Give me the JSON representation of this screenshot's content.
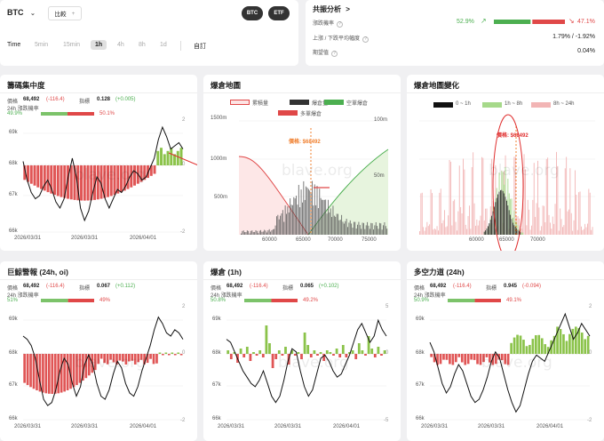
{
  "header": {
    "symbol": "BTC",
    "compare_label": "比較",
    "pills": [
      "BTC",
      "ETF"
    ],
    "time_label": "Time",
    "timeframes": [
      "5min",
      "15min",
      "1h",
      "4h",
      "8h",
      "1d"
    ],
    "selected_timeframe": "1h",
    "custom_label": "自訂"
  },
  "summary": {
    "title": "共振分析",
    "rows": [
      {
        "label": "漲跌機率",
        "value_up": "52.9%",
        "value_down": "47.1%",
        "up_fraction": 0.529
      },
      {
        "label": "上漲 / 下跌平均幅度",
        "value": "1.79% / -1.92%"
      },
      {
        "label": "期望值",
        "value": "0.04%"
      }
    ]
  },
  "panels": [
    {
      "title": "籌碼集中度",
      "price_label": "價格",
      "price": "68,492",
      "price_change": "(-116.4)",
      "indicator_label": "指標",
      "indicator": "0.128",
      "indicator_change": "(+0.005)",
      "prob_label": "24h 漲跌機率",
      "prob_up": "49.9%",
      "prob_down": "50.1%",
      "up_fraction": 0.499,
      "y_ticks": [
        "69k",
        "68k",
        "67k",
        "66k"
      ],
      "right_top": "2",
      "right_zero": "0",
      "right_bottom": "-2",
      "x_ticks": [
        "2026/03/31",
        "2026/03/31",
        "2026/04/01"
      ]
    },
    {
      "title": "爆倉地圖",
      "legend": [
        "累積量",
        "爆倉量",
        "空單爆倉",
        "多單爆倉"
      ],
      "price_tag": "價格: $68492",
      "left_ticks": [
        "1500m",
        "1000m",
        "500m"
      ],
      "right_ticks": [
        "100m",
        "50m"
      ],
      "x_ticks": [
        "60000",
        "65000",
        "70000",
        "75000"
      ]
    },
    {
      "title": "爆倉地圖變化",
      "legend": [
        "0 ~ 1h",
        "1h ~ 8h",
        "8h ~ 24h"
      ],
      "price_tag": "價格: $68492",
      "x_ticks": [
        "60000",
        "65000",
        "70000"
      ]
    },
    {
      "title": "巨鯨警報 (24h, oi)",
      "price_label": "價格",
      "price": "68,492",
      "price_change": "(-116.4)",
      "indicator_label": "指標",
      "indicator": "0.067",
      "indicator_change": "(+0.112)",
      "prob_label": "24h 漲跌機率",
      "prob_up": "51%",
      "prob_down": "49%",
      "up_fraction": 0.51,
      "y_ticks": [
        "69k",
        "68k",
        "67k",
        "66k"
      ],
      "right_top": "2",
      "right_zero": "0",
      "right_bottom": "-2",
      "x_ticks": [
        "2026/03/31",
        "2026/03/31",
        "2026/04/01"
      ]
    },
    {
      "title": "爆倉 (1h)",
      "price_label": "價格",
      "price": "68,492",
      "price_change": "(-116.4)",
      "indicator_label": "指標",
      "indicator": "0.065",
      "indicator_change": "(+0.102)",
      "prob_label": "24h 漲跌機率",
      "prob_up": "50.8%",
      "prob_down": "49.2%",
      "up_fraction": 0.508,
      "y_ticks": [
        "69k",
        "68k",
        "67k",
        "66k"
      ],
      "right_top": "5",
      "right_zero": "0",
      "right_bottom": "-5",
      "x_ticks": [
        "2026/03/31",
        "2026/03/31",
        "2026/04/01"
      ]
    },
    {
      "title": "多空力道 (24h)",
      "price_label": "價格",
      "price": "68,492",
      "price_change": "(-116.4)",
      "indicator_label": "指標",
      "indicator": "0.945",
      "indicator_change": "(-0.094)",
      "prob_label": "24h 漲跌機率",
      "prob_up": "50.9%",
      "prob_down": "49.1%",
      "up_fraction": 0.509,
      "y_ticks": [
        "69k",
        "68k",
        "67k",
        "66k"
      ],
      "right_top": "2",
      "right_zero": "0",
      "right_bottom": "-2",
      "x_ticks": [
        "2026/03/31",
        "2026/03/31",
        "2026/04/01"
      ]
    }
  ],
  "watermark": "blave.org",
  "colors": {
    "up": "#4caf50",
    "down": "#e04848",
    "bar_up": "#8bc34a",
    "bar_down": "#e05555",
    "pink": "#f2b5b5",
    "dark": "#333333",
    "accent_orange": "#f08030",
    "annotation_red": "#e03030"
  }
}
